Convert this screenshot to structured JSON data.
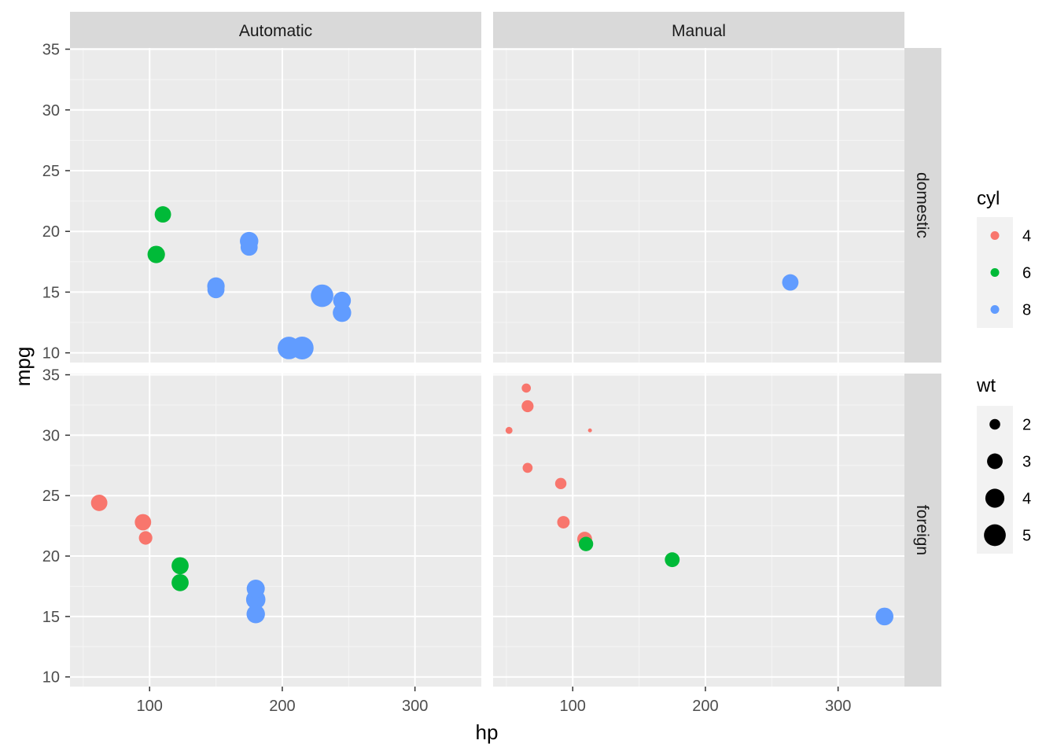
{
  "chart_data": {
    "type": "scatter",
    "xlabel": "hp",
    "ylabel": "mpg",
    "xlim": [
      40,
      350
    ],
    "ylim": [
      9.2,
      35.1
    ],
    "x_ticks": [
      100,
      200,
      300
    ],
    "y_ticks": [
      10,
      15,
      20,
      25,
      30,
      35
    ],
    "grid": true,
    "facet_cols": [
      "Automatic",
      "Manual"
    ],
    "facet_rows": [
      "domestic",
      "foreign"
    ],
    "legend_position": "right",
    "legends": {
      "color": {
        "title": "cyl",
        "entries": [
          {
            "label": "4",
            "color": "#F8766D"
          },
          {
            "label": "6",
            "color": "#00BA38"
          },
          {
            "label": "8",
            "color": "#619CFF"
          }
        ]
      },
      "size": {
        "title": "wt",
        "entries": [
          {
            "label": "2",
            "value": 2
          },
          {
            "label": "3",
            "value": 3
          },
          {
            "label": "4",
            "value": 4
          },
          {
            "label": "5",
            "value": 5
          }
        ]
      }
    },
    "panels": [
      {
        "col": "Automatic",
        "row": "domestic",
        "points": [
          {
            "hp": 110,
            "mpg": 21.4,
            "cyl": 6,
            "wt": 3.2
          },
          {
            "hp": 105,
            "mpg": 18.1,
            "cyl": 6,
            "wt": 3.5
          },
          {
            "hp": 175,
            "mpg": 18.7,
            "cyl": 8,
            "wt": 3.4
          },
          {
            "hp": 175,
            "mpg": 19.2,
            "cyl": 8,
            "wt": 3.8
          },
          {
            "hp": 150,
            "mpg": 15.5,
            "cyl": 8,
            "wt": 3.5
          },
          {
            "hp": 150,
            "mpg": 15.2,
            "cyl": 8,
            "wt": 3.4
          },
          {
            "hp": 230,
            "mpg": 14.7,
            "cyl": 8,
            "wt": 5.3
          },
          {
            "hp": 245,
            "mpg": 14.3,
            "cyl": 8,
            "wt": 3.6
          },
          {
            "hp": 245,
            "mpg": 13.3,
            "cyl": 8,
            "wt": 3.8
          },
          {
            "hp": 205,
            "mpg": 10.4,
            "cyl": 8,
            "wt": 5.3
          },
          {
            "hp": 215,
            "mpg": 10.4,
            "cyl": 8,
            "wt": 5.4
          }
        ]
      },
      {
        "col": "Manual",
        "row": "domestic",
        "points": [
          {
            "hp": 264,
            "mpg": 15.8,
            "cyl": 8,
            "wt": 3.2
          }
        ]
      },
      {
        "col": "Automatic",
        "row": "foreign",
        "points": [
          {
            "hp": 62,
            "mpg": 24.4,
            "cyl": 4,
            "wt": 3.2
          },
          {
            "hp": 95,
            "mpg": 22.8,
            "cyl": 4,
            "wt": 3.2
          },
          {
            "hp": 97,
            "mpg": 21.5,
            "cyl": 4,
            "wt": 2.5
          },
          {
            "hp": 123,
            "mpg": 19.2,
            "cyl": 6,
            "wt": 3.4
          },
          {
            "hp": 123,
            "mpg": 17.8,
            "cyl": 6,
            "wt": 3.4
          },
          {
            "hp": 180,
            "mpg": 17.3,
            "cyl": 8,
            "wt": 3.7
          },
          {
            "hp": 180,
            "mpg": 16.4,
            "cyl": 8,
            "wt": 4.1
          },
          {
            "hp": 180,
            "mpg": 15.2,
            "cyl": 8,
            "wt": 3.8
          }
        ]
      },
      {
        "col": "Manual",
        "row": "foreign",
        "points": [
          {
            "hp": 65,
            "mpg": 33.9,
            "cyl": 4,
            "wt": 1.8
          },
          {
            "hp": 66,
            "mpg": 32.4,
            "cyl": 4,
            "wt": 2.2
          },
          {
            "hp": 52,
            "mpg": 30.4,
            "cyl": 4,
            "wt": 1.6
          },
          {
            "hp": 113,
            "mpg": 30.4,
            "cyl": 4,
            "wt": 1.5
          },
          {
            "hp": 66,
            "mpg": 27.3,
            "cyl": 4,
            "wt": 1.9
          },
          {
            "hp": 91,
            "mpg": 26.0,
            "cyl": 4,
            "wt": 2.1
          },
          {
            "hp": 93,
            "mpg": 22.8,
            "cyl": 4,
            "wt": 2.3
          },
          {
            "hp": 110,
            "mpg": 21.0,
            "cyl": 6,
            "wt": 2.7
          },
          {
            "hp": 109,
            "mpg": 21.4,
            "cyl": 4,
            "wt": 2.8
          },
          {
            "hp": 175,
            "mpg": 19.7,
            "cyl": 6,
            "wt": 2.8
          },
          {
            "hp": 335,
            "mpg": 15.0,
            "cyl": 8,
            "wt": 3.6
          }
        ]
      }
    ]
  }
}
